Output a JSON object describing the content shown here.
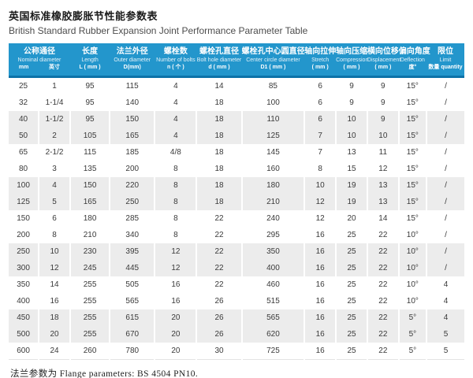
{
  "page": {
    "title_zh": "英国标准橡胶膨胀节性能参数表",
    "title_en": "British Standard Rubber Expansion Joint Performance Parameter Table",
    "footnote": "法兰参数为 Flange parameters: BS 4504 PN10."
  },
  "colors": {
    "header_bg": "#2396cc",
    "header_border": "#0d72a8",
    "stripe_bg": "#ececec"
  },
  "chart_data": {
    "type": "table",
    "title": "英国标准橡胶膨胀节性能参数表",
    "subtitle": "British Standard Rubber Expansion Joint Performance Parameter Table",
    "columns": [
      {
        "id": "nominal-diameter",
        "zh": "公称通径",
        "en": "Nominal diameter",
        "sub": [
          "mm",
          "英寸"
        ]
      },
      {
        "id": "length",
        "zh": "长度",
        "en": "Length",
        "sub": "L ( mm )"
      },
      {
        "id": "outer-diameter",
        "zh": "法兰外径",
        "en": "Outer diameter",
        "sub": "D(mm)"
      },
      {
        "id": "number-of-bolts",
        "zh": "螺栓数",
        "en": "Number of bolts",
        "sub": "n ( 个 )"
      },
      {
        "id": "bolt-hole-diameter",
        "zh": "螺栓孔直径",
        "en": "Bolt hole diameter",
        "sub": "d ( mm )"
      },
      {
        "id": "center-circle-diameter",
        "zh": "螺栓孔中心圆直径",
        "en": "Center circle diameter",
        "sub": "D1 ( mm )"
      },
      {
        "id": "stretch",
        "zh": "轴向拉伸",
        "en": "Stretch",
        "sub": "( mm )"
      },
      {
        "id": "compression",
        "zh": "轴向压缩",
        "en": "Compression",
        "sub": "( mm )"
      },
      {
        "id": "displacement",
        "zh": "横向位移",
        "en": "Displacement",
        "sub": "( mm )"
      },
      {
        "id": "deflection",
        "zh": "偏向角度",
        "en": "Deflection",
        "sub": "度°"
      },
      {
        "id": "limit",
        "zh": "限位",
        "en": "Limit",
        "sub": "数量 quantity"
      }
    ],
    "rows": [
      [
        "25",
        "1",
        "95",
        "115",
        "4",
        "14",
        "85",
        "6",
        "9",
        "9",
        "15°",
        "/"
      ],
      [
        "32",
        "1-1/4",
        "95",
        "140",
        "4",
        "18",
        "100",
        "6",
        "9",
        "9",
        "15°",
        "/"
      ],
      [
        "40",
        "1-1/2",
        "95",
        "150",
        "4",
        "18",
        "110",
        "6",
        "10",
        "9",
        "15°",
        "/"
      ],
      [
        "50",
        "2",
        "105",
        "165",
        "4",
        "18",
        "125",
        "7",
        "10",
        "10",
        "15°",
        "/"
      ],
      [
        "65",
        "2-1/2",
        "115",
        "185",
        "4/8",
        "18",
        "145",
        "7",
        "13",
        "11",
        "15°",
        "/"
      ],
      [
        "80",
        "3",
        "135",
        "200",
        "8",
        "18",
        "160",
        "8",
        "15",
        "12",
        "15°",
        "/"
      ],
      [
        "100",
        "4",
        "150",
        "220",
        "8",
        "18",
        "180",
        "10",
        "19",
        "13",
        "15°",
        "/"
      ],
      [
        "125",
        "5",
        "165",
        "250",
        "8",
        "18",
        "210",
        "12",
        "19",
        "13",
        "15°",
        "/"
      ],
      [
        "150",
        "6",
        "180",
        "285",
        "8",
        "22",
        "240",
        "12",
        "20",
        "14",
        "15°",
        "/"
      ],
      [
        "200",
        "8",
        "210",
        "340",
        "8",
        "22",
        "295",
        "16",
        "25",
        "22",
        "10°",
        "/"
      ],
      [
        "250",
        "10",
        "230",
        "395",
        "12",
        "22",
        "350",
        "16",
        "25",
        "22",
        "10°",
        "/"
      ],
      [
        "300",
        "12",
        "245",
        "445",
        "12",
        "22",
        "400",
        "16",
        "25",
        "22",
        "10°",
        "/"
      ],
      [
        "350",
        "14",
        "255",
        "505",
        "16",
        "22",
        "460",
        "16",
        "25",
        "22",
        "10°",
        "4"
      ],
      [
        "400",
        "16",
        "255",
        "565",
        "16",
        "26",
        "515",
        "16",
        "25",
        "22",
        "10°",
        "4"
      ],
      [
        "450",
        "18",
        "255",
        "615",
        "20",
        "26",
        "565",
        "16",
        "25",
        "22",
        "5°",
        "4"
      ],
      [
        "500",
        "20",
        "255",
        "670",
        "20",
        "26",
        "620",
        "16",
        "25",
        "22",
        "5°",
        "5"
      ],
      [
        "600",
        "24",
        "260",
        "780",
        "20",
        "30",
        "725",
        "16",
        "25",
        "22",
        "5°",
        "5"
      ]
    ]
  }
}
